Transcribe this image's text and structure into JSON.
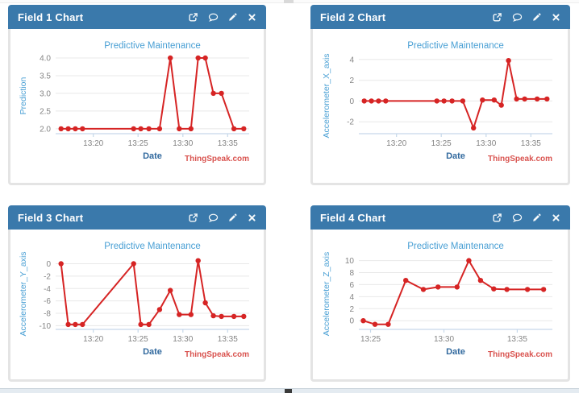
{
  "colors": {
    "header_blue": "#3a79ab",
    "header_text": "#ffffff",
    "panel_border": "#e4e4e4",
    "title_blue": "#489fd4",
    "date_blue": "#31699e",
    "tick_gray": "#848484",
    "grid_gray": "#e8e8e8",
    "axis_line_blue": "#c6d8ea",
    "line_red": "#d62424",
    "watermark_red": "#d9534f"
  },
  "panels": [
    {
      "header": "Field 1 Chart",
      "chart_index": 0
    },
    {
      "header": "Field 2 Chart",
      "chart_index": 1
    },
    {
      "header": "Field 3 Chart",
      "chart_index": 2
    },
    {
      "header": "Field 4 Chart",
      "chart_index": 3
    }
  ],
  "panel_icons": [
    {
      "name": "external-link-icon"
    },
    {
      "name": "comment-icon"
    },
    {
      "name": "edit-icon"
    },
    {
      "name": "close-icon"
    }
  ],
  "chart_data": [
    {
      "type": "line",
      "title": "Predictive Maintenance",
      "xlabel": "Date",
      "ylabel": "Prediction",
      "watermark": "ThingSpeak.com",
      "x_unit": "minutes after 13:00",
      "x": [
        16.4,
        17.2,
        18.0,
        18.8,
        24.5,
        25.3,
        26.2,
        27.4,
        28.6,
        29.6,
        30.9,
        31.7,
        32.5,
        33.4,
        34.3,
        35.7,
        36.8
      ],
      "values": [
        2.0,
        2.0,
        2.0,
        2.0,
        2.0,
        2.0,
        2.0,
        2.0,
        4.0,
        2.0,
        2.0,
        4.0,
        4.0,
        3.0,
        3.0,
        2.0,
        2.0
      ],
      "xlim": [
        15.8,
        37.4
      ],
      "ylim": [
        1.86,
        4.0
      ],
      "yticks": [
        {
          "v": 4.0,
          "label": "4.0"
        },
        {
          "v": 3.5,
          "label": "3.5"
        },
        {
          "v": 3.0,
          "label": "3.0"
        },
        {
          "v": 2.5,
          "label": "2.5"
        },
        {
          "v": 2.0,
          "label": "2.0"
        }
      ],
      "xticks": [
        {
          "v": 20,
          "label": "13:20"
        },
        {
          "v": 25,
          "label": "13:25"
        },
        {
          "v": 30,
          "label": "13:30"
        },
        {
          "v": 35,
          "label": "13:35"
        }
      ],
      "grid": "horizontal",
      "legend": "none"
    },
    {
      "type": "line",
      "title": "Predictive Maintenance",
      "xlabel": "Date",
      "ylabel": "Accelerometer_X_axis",
      "watermark": "ThingSpeak.com",
      "x_unit": "minutes after 13:00",
      "x": [
        16.4,
        17.2,
        18.0,
        18.8,
        24.5,
        25.3,
        26.2,
        27.4,
        28.6,
        29.6,
        30.9,
        31.7,
        32.5,
        33.4,
        34.3,
        35.7,
        36.8
      ],
      "values": [
        0,
        0,
        0,
        0,
        0,
        0,
        0,
        0,
        -2.6,
        0.1,
        0.1,
        -0.4,
        3.9,
        0.2,
        0.2,
        0.2,
        0.2
      ],
      "xlim": [
        15.8,
        37.4
      ],
      "ylim": [
        -3.15,
        4.15
      ],
      "yticks": [
        {
          "v": 4,
          "label": "4"
        },
        {
          "v": 2,
          "label": "2"
        },
        {
          "v": 0,
          "label": "0"
        },
        {
          "v": -2,
          "label": "-2"
        }
      ],
      "xticks": [
        {
          "v": 20,
          "label": "13:20"
        },
        {
          "v": 25,
          "label": "13:25"
        },
        {
          "v": 30,
          "label": "13:30"
        },
        {
          "v": 35,
          "label": "13:35"
        }
      ],
      "grid": "horizontal",
      "legend": "none"
    },
    {
      "type": "line",
      "title": "Predictive Maintenance",
      "xlabel": "Date",
      "ylabel": "Accelerometer_Y_axis",
      "watermark": "ThingSpeak.com",
      "x_unit": "minutes after 13:00",
      "x": [
        16.4,
        17.2,
        18.0,
        18.8,
        24.5,
        25.3,
        26.2,
        27.4,
        28.6,
        29.6,
        30.9,
        31.7,
        32.5,
        33.4,
        34.3,
        35.7,
        36.8
      ],
      "values": [
        0,
        -9.8,
        -9.8,
        -9.8,
        0,
        -9.8,
        -9.8,
        -7.4,
        -4.3,
        -8.2,
        -8.2,
        0.5,
        -6.3,
        -8.4,
        -8.5,
        -8.5,
        -8.5
      ],
      "xlim": [
        15.8,
        37.4
      ],
      "ylim": [
        -10.6,
        0.85
      ],
      "yticks": [
        {
          "v": 0,
          "label": "0"
        },
        {
          "v": -2,
          "label": "-2"
        },
        {
          "v": -4,
          "label": "-4"
        },
        {
          "v": -6,
          "label": "-6"
        },
        {
          "v": -8,
          "label": "-8"
        },
        {
          "v": -10,
          "label": "-10"
        }
      ],
      "xticks": [
        {
          "v": 20,
          "label": "13:20"
        },
        {
          "v": 25,
          "label": "13:25"
        },
        {
          "v": 30,
          "label": "13:30"
        },
        {
          "v": 35,
          "label": "13:35"
        }
      ],
      "grid": "horizontal",
      "legend": "none"
    },
    {
      "type": "line",
      "title": "Predictive Maintenance",
      "xlabel": "Date",
      "ylabel": "Accelerometer_Z_axis",
      "watermark": "ThingSpeak.com",
      "x_unit": "minutes after 13:00",
      "x": [
        24.5,
        25.3,
        26.2,
        27.4,
        28.6,
        29.6,
        30.9,
        31.7,
        32.5,
        33.4,
        34.3,
        35.7,
        36.8
      ],
      "values": [
        0,
        -0.6,
        -0.6,
        6.7,
        5.2,
        5.6,
        5.6,
        10.0,
        6.7,
        5.3,
        5.2,
        5.2,
        5.2
      ],
      "xlim": [
        24.2,
        37.4
      ],
      "ylim": [
        -1.45,
        10.35
      ],
      "yticks": [
        {
          "v": 10,
          "label": "10"
        },
        {
          "v": 8,
          "label": "8"
        },
        {
          "v": 6,
          "label": "6"
        },
        {
          "v": 4,
          "label": "4"
        },
        {
          "v": 2,
          "label": "2"
        },
        {
          "v": 0,
          "label": "0"
        }
      ],
      "xticks": [
        {
          "v": 25,
          "label": "13:25"
        },
        {
          "v": 30,
          "label": "13:30"
        },
        {
          "v": 35,
          "label": "13:35"
        }
      ],
      "grid": "horizontal",
      "legend": "none"
    }
  ]
}
